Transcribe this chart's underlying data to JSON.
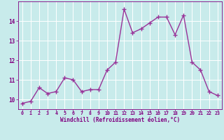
{
  "x": [
    0,
    1,
    2,
    3,
    4,
    5,
    6,
    7,
    8,
    9,
    10,
    11,
    12,
    13,
    14,
    15,
    16,
    17,
    18,
    19,
    20,
    21,
    22,
    23
  ],
  "y": [
    9.8,
    9.9,
    10.6,
    10.3,
    10.4,
    11.1,
    11.0,
    10.4,
    10.5,
    10.5,
    11.5,
    11.9,
    14.6,
    13.4,
    13.6,
    13.9,
    14.2,
    14.2,
    13.3,
    14.3,
    11.9,
    11.5,
    10.4,
    10.2
  ],
  "line_color": "#993399",
  "marker": "+",
  "marker_size": 4,
  "linewidth": 1.0,
  "xlabel": "Windchill (Refroidissement éolien,°C)",
  "xlim": [
    -0.5,
    23.5
  ],
  "ylim": [
    9.5,
    15.0
  ],
  "yticks": [
    10,
    11,
    12,
    13,
    14
  ],
  "xticks": [
    0,
    1,
    2,
    3,
    4,
    5,
    6,
    7,
    8,
    9,
    10,
    11,
    12,
    13,
    14,
    15,
    16,
    17,
    18,
    19,
    20,
    21,
    22,
    23
  ],
  "bg_color": "#c8ebeb",
  "grid_color": "#ffffff",
  "tick_color": "#800080",
  "label_color": "#800080",
  "axis_color": "#800080",
  "xlabel_fontsize": 5.5,
  "xtick_fontsize": 4.8,
  "ytick_fontsize": 5.5
}
